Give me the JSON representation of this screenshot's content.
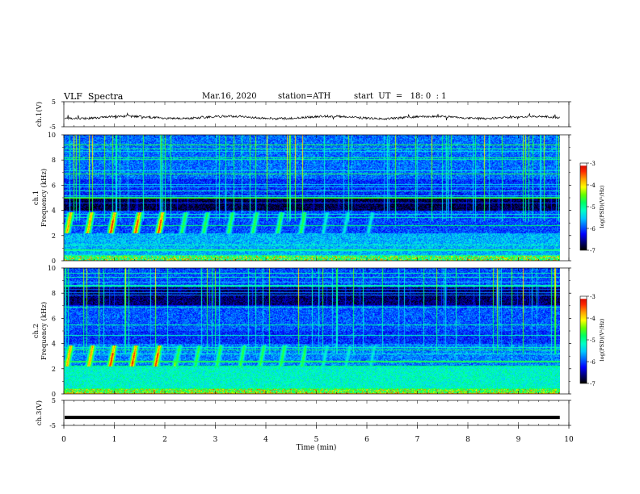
{
  "header": {
    "title": "VLF  Spectra",
    "date": "Mar.16, 2020",
    "station": "station=ATH",
    "start_ut": "start  UT  =   18: 0  : 1"
  },
  "chart_data": [
    {
      "type": "line",
      "ylabel": "ch.1(V)",
      "ylim": [
        -5,
        5
      ],
      "yticks": [
        "5",
        "-5"
      ],
      "description_series": "waveform amplitude around 0 V, noisy with occasional spikes"
    },
    {
      "type": "heatmap",
      "ylabel_top": "ch.1",
      "ylabel": "Frequency  (kHz)",
      "ylim": [
        0,
        10
      ],
      "yticks": [
        "0",
        "2",
        "4",
        "6",
        "8",
        "10"
      ],
      "colorbar": {
        "label": "log(PSD)(V²/Hz)",
        "ticks": [
          "-3",
          "-4",
          "-5",
          "-6",
          "-7"
        ],
        "range": [
          -7,
          -3
        ]
      },
      "features": [
        {
          "name": "chorus bursts",
          "freq_range_khz": [
            2.2,
            3.8
          ],
          "time_range_min": [
            0,
            6
          ],
          "peak_log_psd": -3.5
        },
        {
          "name": "dark band",
          "freq_range_khz": [
            4.0,
            5.0
          ],
          "log_psd": -7
        }
      ]
    },
    {
      "type": "heatmap",
      "ylabel_top": "ch.2",
      "ylabel": "Frequency  (kHz)",
      "ylim": [
        0,
        10
      ],
      "yticks": [
        "0",
        "2",
        "4",
        "6",
        "8",
        "10"
      ],
      "colorbar": {
        "label": "log(PSD)(V²/Hz)",
        "ticks": [
          "-3",
          "-4",
          "-5",
          "-6",
          "-7"
        ],
        "range": [
          -7,
          -3
        ]
      },
      "features": [
        {
          "name": "chorus bursts",
          "freq_range_khz": [
            2.2,
            3.8
          ],
          "time_range_min": [
            0,
            6
          ],
          "peak_log_psd": -3.5
        },
        {
          "name": "dark band",
          "freq_range_khz": [
            7.0,
            8.5
          ],
          "log_psd": -7
        }
      ]
    },
    {
      "type": "line",
      "ylabel": "ch.3(V)",
      "ylim": [
        -5,
        5
      ],
      "yticks": [
        "5",
        "-5"
      ],
      "values_constant": -1.8
    }
  ],
  "xaxis": {
    "label": "Time  (min)",
    "ticks": [
      "0",
      "1",
      "2",
      "3",
      "4",
      "5",
      "6",
      "7",
      "8",
      "9",
      "10"
    ],
    "range": [
      0,
      10
    ],
    "data_end": 9.82
  },
  "colors": {
    "scale": [
      "#000000",
      "#00007a",
      "#0000ff",
      "#0064ff",
      "#00c8ff",
      "#00ffc8",
      "#00ff64",
      "#64ff00",
      "#ffff00",
      "#ffa000",
      "#ff2800",
      "#c80000",
      "#ffffff"
    ]
  }
}
